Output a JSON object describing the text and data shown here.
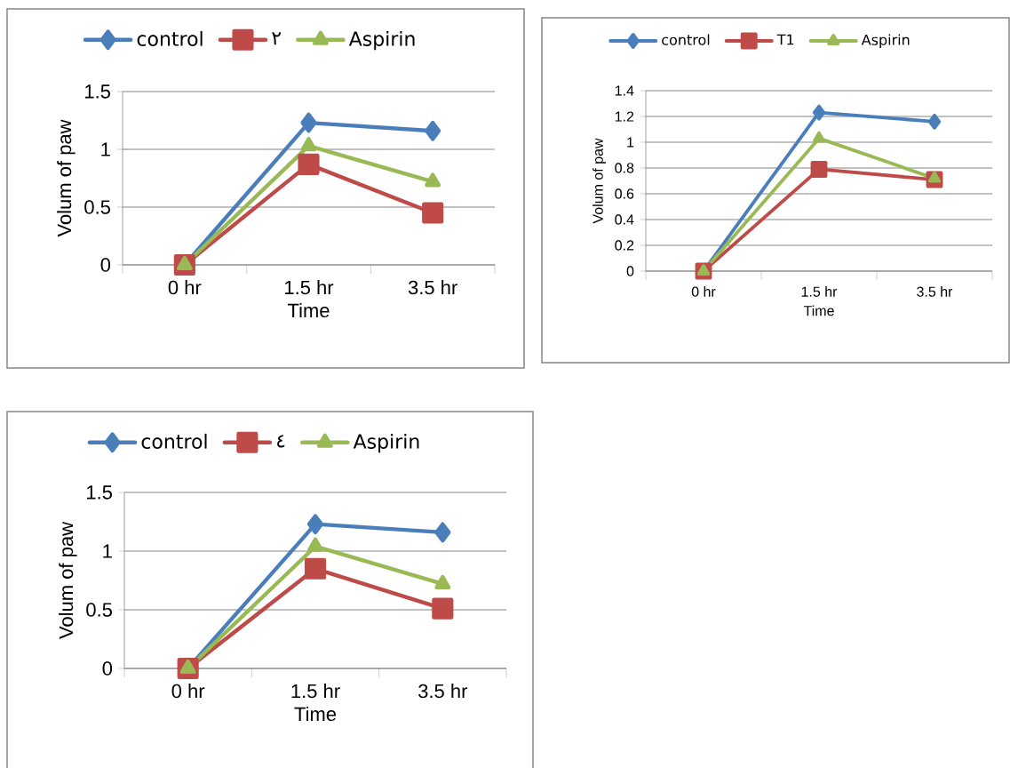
{
  "chart_data": [
    {
      "type": "line",
      "xlabel": "Time",
      "ylabel": "Volum of paw",
      "categories": [
        "0  hr",
        "1.5 hr",
        "3.5 hr"
      ],
      "ylim": [
        0,
        1.5
      ],
      "yticks": [
        0,
        0.5,
        1,
        1.5
      ],
      "grid": "y",
      "legend": "top",
      "series": [
        {
          "name": "control",
          "color": "#4a7ebb",
          "marker": "diamond",
          "values": [
            0,
            1.23,
            1.16
          ]
        },
        {
          "name": "٢",
          "color": "#be4b48",
          "marker": "square",
          "values": [
            0,
            0.87,
            0.45
          ]
        },
        {
          "name": "Aspirin",
          "color": "#98b954",
          "marker": "triangle",
          "values": [
            0,
            1.03,
            0.72
          ]
        }
      ]
    },
    {
      "type": "line",
      "xlabel": "Time",
      "ylabel": "Volum of paw",
      "categories": [
        "0  hr",
        "1.5 hr",
        "3.5 hr"
      ],
      "ylim": [
        0,
        1.4
      ],
      "yticks": [
        0,
        0.2,
        0.4,
        0.6,
        0.8,
        1,
        1.2,
        1.4
      ],
      "grid": "y",
      "legend": "top",
      "series": [
        {
          "name": "control",
          "color": "#4a7ebb",
          "marker": "diamond",
          "values": [
            0,
            1.23,
            1.16
          ]
        },
        {
          "name": "T1",
          "color": "#be4b48",
          "marker": "square",
          "values": [
            0,
            0.79,
            0.71
          ]
        },
        {
          "name": "Aspirin",
          "color": "#98b954",
          "marker": "triangle",
          "values": [
            0,
            1.03,
            0.72
          ]
        }
      ]
    },
    {
      "type": "line",
      "xlabel": "Time",
      "ylabel": "Volum of paw",
      "categories": [
        "0  hr",
        "1.5 hr",
        "3.5 hr"
      ],
      "ylim": [
        0,
        1.5
      ],
      "yticks": [
        0,
        0.5,
        1,
        1.5
      ],
      "grid": "y",
      "legend": "top",
      "series": [
        {
          "name": "control",
          "color": "#4a7ebb",
          "marker": "diamond",
          "values": [
            0,
            1.23,
            1.16
          ]
        },
        {
          "name": "٤",
          "color": "#be4b48",
          "marker": "square",
          "values": [
            0,
            0.85,
            0.51
          ]
        },
        {
          "name": "Aspirin",
          "color": "#98b954",
          "marker": "triangle",
          "values": [
            0,
            1.04,
            0.72
          ]
        }
      ]
    }
  ]
}
